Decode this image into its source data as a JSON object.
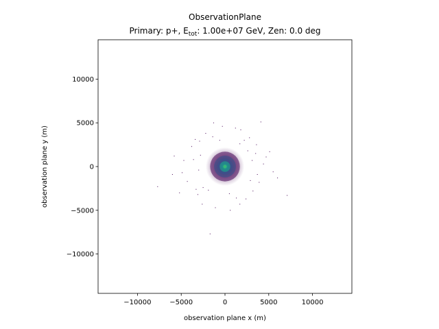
{
  "chart_data": {
    "type": "heatmap",
    "title": "ObservationPlane",
    "subtitle": {
      "prefix": "Primary: p+, E",
      "subscript": "tot",
      "suffix": ": 1.00e+07 GeV, Zen: 0.0 deg"
    },
    "xlabel": "observation plane x (m)",
    "ylabel": "observation plane y (m)",
    "xlim": [
      -14500,
      14500
    ],
    "ylim": [
      -14500,
      14500
    ],
    "xticks": [
      -10000,
      -5000,
      0,
      5000,
      10000
    ],
    "xtick_labels": [
      "−10000",
      "−5000",
      "0",
      "5000",
      "10000"
    ],
    "yticks": [
      -10000,
      -5000,
      0,
      5000,
      10000
    ],
    "ytick_labels": [
      "−10000",
      "−5000",
      "0",
      "5000",
      "10000"
    ],
    "grid": false,
    "colormap": [
      "#440154",
      "#3b528b",
      "#21918c",
      "#5ec962"
    ],
    "core": {
      "x": 0,
      "y": 0,
      "value": 1.0
    },
    "peak_color": "#35b779",
    "density_levels": [
      {
        "radius": 2200,
        "value": 0.02
      },
      {
        "radius": 1700,
        "value": 0.06
      },
      {
        "radius": 1250,
        "value": 0.15
      },
      {
        "radius": 900,
        "value": 0.3
      },
      {
        "radius": 600,
        "value": 0.5
      },
      {
        "radius": 350,
        "value": 0.75
      }
    ],
    "outlier_hits": [
      [
        4100,
        5100
      ],
      [
        -1700,
        -7700
      ],
      [
        7100,
        -3300
      ],
      [
        -7700,
        -2300
      ],
      [
        -6000,
        -900
      ],
      [
        6000,
        -1300
      ],
      [
        -1300,
        5000
      ],
      [
        1800,
        4200
      ],
      [
        -3400,
        3100
      ],
      [
        3600,
        2500
      ],
      [
        -5200,
        -3000
      ],
      [
        4700,
        1100
      ],
      [
        -2600,
        -4300
      ],
      [
        1700,
        -4300
      ],
      [
        -4700,
        700
      ],
      [
        3900,
        -1800
      ],
      [
        -5800,
        1200
      ],
      [
        5500,
        -600
      ],
      [
        -3100,
        -3200
      ],
      [
        2800,
        3300
      ],
      [
        -300,
        4600
      ],
      [
        600,
        -5000
      ],
      [
        -4300,
        -1700
      ],
      [
        4400,
        300
      ],
      [
        2400,
        -3700
      ],
      [
        -2200,
        3800
      ],
      [
        -3800,
        2300
      ],
      [
        3200,
        -2800
      ],
      [
        -1100,
        -4700
      ],
      [
        1200,
        4400
      ],
      [
        -4900,
        -700
      ],
      [
        5100,
        1700
      ],
      [
        1300,
        -3600
      ],
      [
        -1400,
        3400
      ],
      [
        -3300,
        -2600
      ],
      [
        3500,
        1500
      ],
      [
        -2900,
        2900
      ],
      [
        2200,
        3000
      ],
      [
        -3600,
        800
      ],
      [
        3700,
        -900
      ],
      [
        2600,
        1800
      ],
      [
        -2500,
        -2400
      ],
      [
        2900,
        -1600
      ],
      [
        -2800,
        1300
      ],
      [
        -1900,
        -2700
      ],
      [
        1700,
        2600
      ],
      [
        -600,
        3000
      ],
      [
        500,
        -3100
      ],
      [
        -3000,
        -400
      ],
      [
        3100,
        700
      ]
    ]
  }
}
